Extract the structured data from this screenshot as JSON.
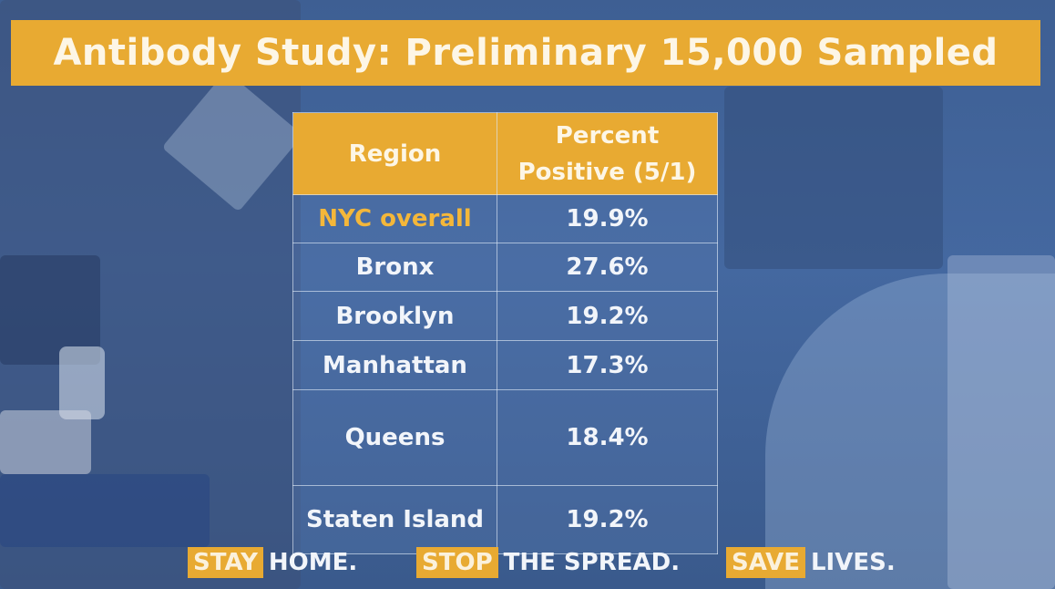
{
  "title": "Antibody Study: Preliminary 15,000 Sampled",
  "table": {
    "headers": [
      "Region",
      "Percent Positive (5/1)"
    ],
    "header_lines": [
      [
        "Region"
      ],
      [
        "Percent",
        "Positive (5/1)"
      ]
    ]
  },
  "chart_data": {
    "type": "table",
    "title": "Antibody Study: Preliminary 15,000 Sampled",
    "columns": [
      "Region",
      "Percent Positive (5/1)"
    ],
    "rows": [
      {
        "region": "NYC overall",
        "value": "19.9%"
      },
      {
        "region": "Bronx",
        "value": "27.6%"
      },
      {
        "region": "Brooklyn",
        "value": "19.2%"
      },
      {
        "region": "Manhattan",
        "value": "17.3%"
      },
      {
        "region": "Queens",
        "value": "18.4%"
      },
      {
        "region": "Staten Island",
        "value": "19.2%"
      }
    ],
    "highlight_row": "NYC overall",
    "highlight_color": "#f4b73a"
  },
  "tagline": [
    {
      "boxed": "STAY",
      "rest": "HOME."
    },
    {
      "boxed": "STOP",
      "rest": "THE SPREAD."
    },
    {
      "boxed": "SAVE",
      "rest": "LIVES."
    }
  ],
  "colors": {
    "accent": "#e8aa32",
    "background": "#4468a0",
    "text": "#f2f5fa"
  }
}
